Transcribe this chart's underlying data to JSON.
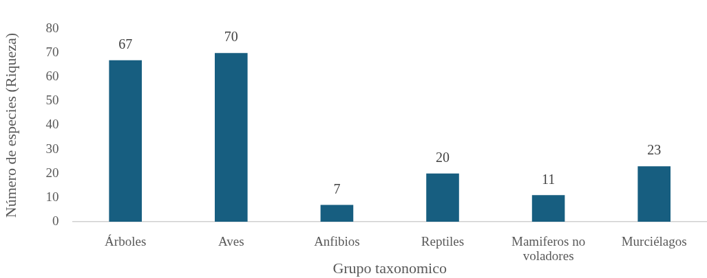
{
  "chart_data": {
    "type": "bar",
    "xlabel": "Grupo taxonomico",
    "ylabel": "Número de especies (Riqueza)",
    "categories": [
      "Árboles",
      "Aves",
      "Anfibios",
      "Reptiles",
      "Mamiferos no voladores",
      "Murciélagos"
    ],
    "values": [
      67,
      70,
      7,
      20,
      11,
      23
    ],
    "color": "#175e80",
    "ylim": [
      0,
      80
    ],
    "yticks": [
      0,
      10,
      20,
      30,
      40,
      50,
      60,
      70,
      80
    ],
    "data_labels": true
  }
}
